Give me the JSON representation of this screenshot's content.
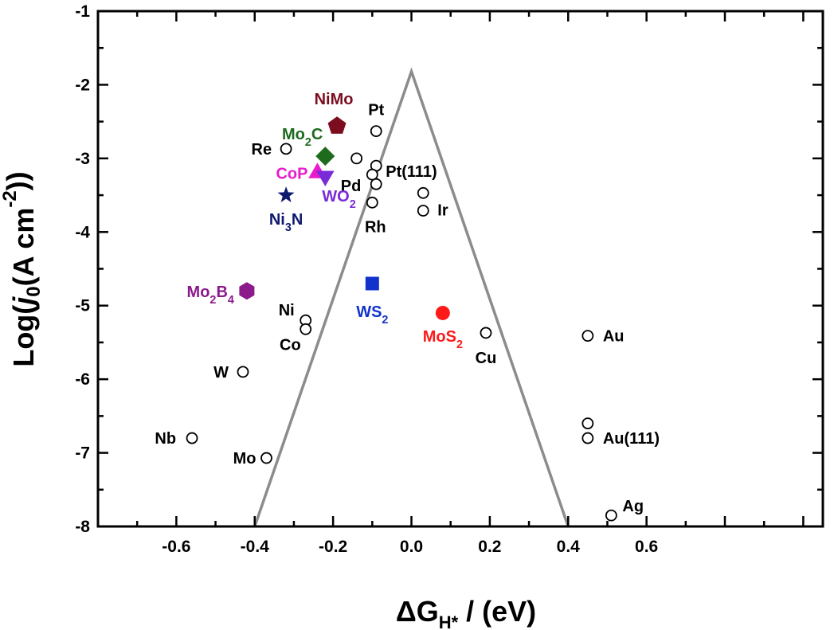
{
  "chart_data": {
    "type": "scatter",
    "xlabel": "ΔG",
    "xlabel_sub": "H*",
    "xlabel_unit": " / (eV)",
    "ylabel": "Log(j₀(A cm⁻²))",
    "xlim": [
      -0.8,
      1.05
    ],
    "ylim": [
      -8,
      -1
    ],
    "x_ticks": [
      "-0.6",
      "-0.4",
      "-0.2",
      "0.0",
      "0.2",
      "0.4",
      "0.6"
    ],
    "x_tick_values": [
      -0.6,
      -0.4,
      -0.2,
      0.0,
      0.2,
      0.4,
      0.6
    ],
    "y_ticks": [
      "-1",
      "-2",
      "-3",
      "-4",
      "-5",
      "-6",
      "-7",
      "-8"
    ],
    "y_tick_values": [
      -1,
      -2,
      -3,
      -4,
      -5,
      -6,
      -7,
      -8
    ],
    "grid": false,
    "volcano_line": {
      "x": [
        -0.4,
        0.0,
        0.4
      ],
      "y": [
        -8,
        -1.82,
        -8
      ],
      "color": "#8c8c8c"
    },
    "metals": [
      {
        "label": "Pt",
        "x": -0.09,
        "y": -2.63
      },
      {
        "label": "Re",
        "x": -0.32,
        "y": -2.87
      },
      {
        "label": "",
        "x": -0.14,
        "y": -3.0
      },
      {
        "label": "Pt(111)",
        "x": -0.09,
        "y": -3.1
      },
      {
        "label": "Pd",
        "x": -0.1,
        "y": -3.22
      },
      {
        "label": "",
        "x": -0.09,
        "y": -3.35
      },
      {
        "label": "",
        "x": 0.03,
        "y": -3.47
      },
      {
        "label": "Ir",
        "x": 0.03,
        "y": -3.71
      },
      {
        "label": "Rh",
        "x": -0.1,
        "y": -3.6
      },
      {
        "label": "Ni",
        "x": -0.27,
        "y": -5.2
      },
      {
        "label": "Co",
        "x": -0.27,
        "y": -5.32
      },
      {
        "label": "W",
        "x": -0.43,
        "y": -5.9
      },
      {
        "label": "Nb",
        "x": -0.56,
        "y": -6.8
      },
      {
        "label": "Mo",
        "x": -0.37,
        "y": -7.07
      },
      {
        "label": "Cu",
        "x": 0.19,
        "y": -5.37
      },
      {
        "label": "Au",
        "x": 0.45,
        "y": -5.41
      },
      {
        "label": "",
        "x": 0.45,
        "y": -6.6
      },
      {
        "label": "Au(111)",
        "x": 0.45,
        "y": -6.8
      },
      {
        "label": "Ag",
        "x": 0.51,
        "y": -7.85
      }
    ],
    "compounds": [
      {
        "label": "NiMo",
        "x": -0.19,
        "y": -2.56,
        "marker": "pentagon",
        "color": "#7b0d1e"
      },
      {
        "label": "Mo₂C",
        "x": -0.22,
        "y": -2.97,
        "marker": "diamond",
        "color": "#1e6b1e"
      },
      {
        "label": "CoP",
        "x": -0.24,
        "y": -3.2,
        "marker": "triangle-up",
        "color": "#e81ccc"
      },
      {
        "label": "WO₂",
        "x": -0.22,
        "y": -3.24,
        "marker": "triangle-down",
        "color": "#7a2bd8"
      },
      {
        "label": "Ni₃N",
        "x": -0.32,
        "y": -3.5,
        "marker": "star",
        "color": "#0d1a70"
      },
      {
        "label": "Mo₂B₄",
        "x": -0.42,
        "y": -4.8,
        "marker": "hexagon",
        "color": "#8b1a8b"
      },
      {
        "label": "WS₂",
        "x": -0.1,
        "y": -4.7,
        "marker": "square",
        "color": "#1133cc"
      },
      {
        "label": "MoS₂",
        "x": 0.08,
        "y": -5.1,
        "marker": "circle",
        "color": "#ff1a1a"
      }
    ]
  }
}
